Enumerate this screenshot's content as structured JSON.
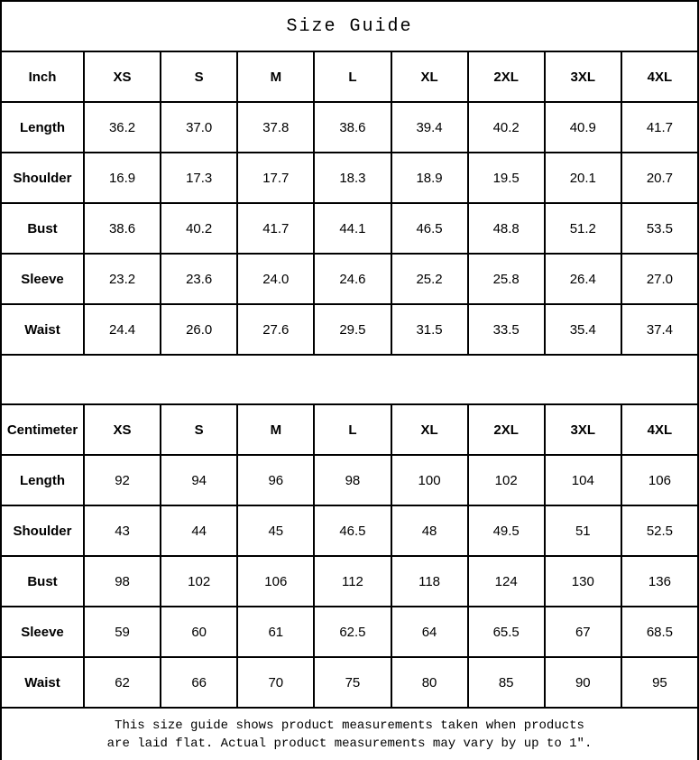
{
  "chart_data": {
    "type": "table",
    "title": "Size Guide",
    "tables": [
      {
        "unit_label": "Inch",
        "sizes": [
          "XS",
          "S",
          "M",
          "L",
          "XL",
          "2XL",
          "3XL",
          "4XL"
        ],
        "rows": [
          {
            "label": "Length",
            "values": [
              "36.2",
              "37.0",
              "37.8",
              "38.6",
              "39.4",
              "40.2",
              "40.9",
              "41.7"
            ]
          },
          {
            "label": "Shoulder",
            "values": [
              "16.9",
              "17.3",
              "17.7",
              "18.3",
              "18.9",
              "19.5",
              "20.1",
              "20.7"
            ]
          },
          {
            "label": "Bust",
            "values": [
              "38.6",
              "40.2",
              "41.7",
              "44.1",
              "46.5",
              "48.8",
              "51.2",
              "53.5"
            ]
          },
          {
            "label": "Sleeve",
            "values": [
              "23.2",
              "23.6",
              "24.0",
              "24.6",
              "25.2",
              "25.8",
              "26.4",
              "27.0"
            ]
          },
          {
            "label": "Waist",
            "values": [
              "24.4",
              "26.0",
              "27.6",
              "29.5",
              "31.5",
              "33.5",
              "35.4",
              "37.4"
            ]
          }
        ]
      },
      {
        "unit_label": "Centimeter",
        "sizes": [
          "XS",
          "S",
          "M",
          "L",
          "XL",
          "2XL",
          "3XL",
          "4XL"
        ],
        "rows": [
          {
            "label": "Length",
            "values": [
              "92",
              "94",
              "96",
              "98",
              "100",
              "102",
              "104",
              "106"
            ]
          },
          {
            "label": "Shoulder",
            "values": [
              "43",
              "44",
              "45",
              "46.5",
              "48",
              "49.5",
              "51",
              "52.5"
            ]
          },
          {
            "label": "Bust",
            "values": [
              "98",
              "102",
              "106",
              "112",
              "118",
              "124",
              "130",
              "136"
            ]
          },
          {
            "label": "Sleeve",
            "values": [
              "59",
              "60",
              "61",
              "62.5",
              "64",
              "65.5",
              "67",
              "68.5"
            ]
          },
          {
            "label": "Waist",
            "values": [
              "62",
              "66",
              "70",
              "75",
              "80",
              "85",
              "90",
              "95"
            ]
          }
        ]
      }
    ],
    "note_line1": "This size guide shows product measurements taken when products",
    "note_line2": "are laid flat. Actual product measurements may vary by up to 1″.",
    "layout": {
      "grid": "on",
      "border_color": "#000000",
      "text_color": "#000000",
      "background_color": "#ffffff"
    }
  }
}
